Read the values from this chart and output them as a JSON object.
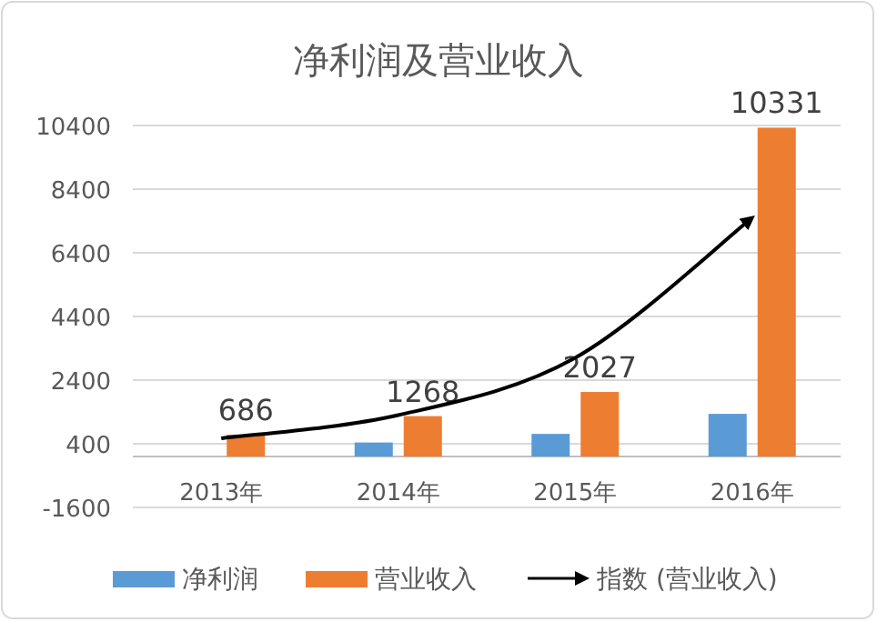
{
  "chart_data": {
    "type": "bar",
    "title": "净利润及营业收入",
    "categories": [
      "2013年",
      "2014年",
      "2015年",
      "2016年"
    ],
    "series": [
      {
        "name": "净利润",
        "color": "#5b9bd5",
        "values": [
          null,
          440,
          710,
          1340
        ]
      },
      {
        "name": "营业收入",
        "color": "#ed7d31",
        "values": [
          686,
          1268,
          2027,
          10331
        ],
        "value_labels": [
          "686",
          "1268",
          "2027",
          "10331"
        ]
      },
      {
        "name": "指数 (营业收入)",
        "type": "line",
        "color": "#000000",
        "line_style": "solid",
        "values": [
          570,
          1300,
          3100,
          7500
        ]
      }
    ],
    "ylim": [
      -1600,
      10400
    ],
    "yticks": [
      -1600,
      400,
      2400,
      4400,
      6400,
      8400,
      10400
    ],
    "grid": "y",
    "legend": "bottom"
  }
}
